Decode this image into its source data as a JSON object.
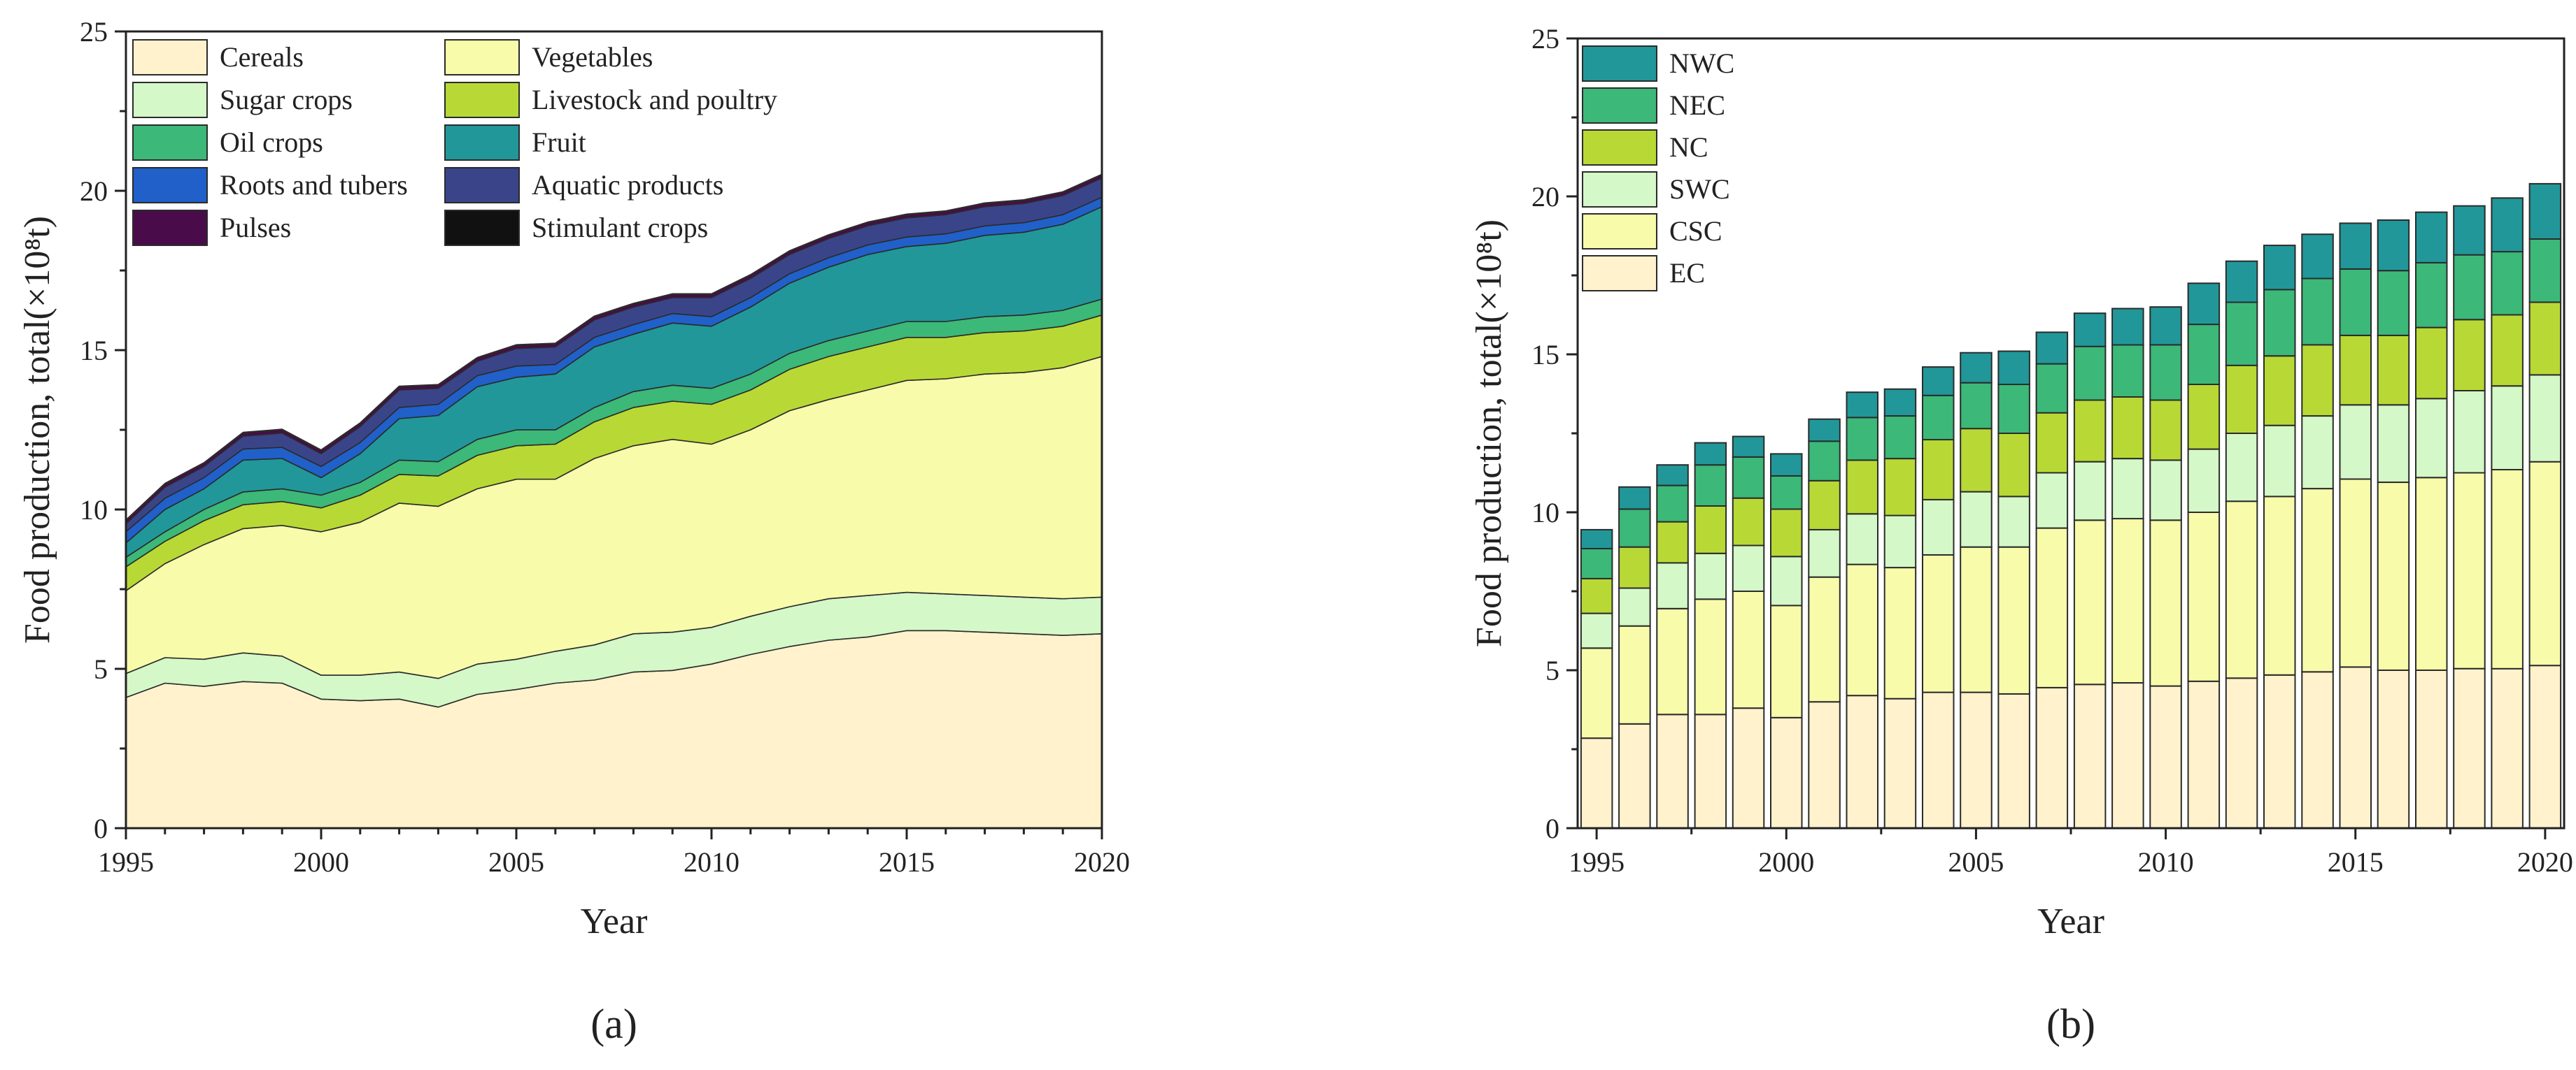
{
  "chart_data": [
    {
      "type": "area",
      "stacked": true,
      "panel_label": "(a)",
      "xlabel": "Year",
      "ylabel": "Food production, total(×10⁸t)",
      "xlim": [
        1995,
        2020
      ],
      "ylim": [
        0,
        25
      ],
      "xticks": [
        "1995",
        "2000",
        "2005",
        "2010",
        "2015",
        "2020"
      ],
      "yticks": [
        "0",
        "5",
        "10",
        "15",
        "20",
        "25"
      ],
      "x": [
        1995,
        1996,
        1997,
        1998,
        1999,
        2000,
        2001,
        2002,
        2003,
        2004,
        2005,
        2006,
        2007,
        2008,
        2009,
        2010,
        2011,
        2012,
        2013,
        2014,
        2015,
        2016,
        2017,
        2018,
        2019,
        2020
      ],
      "legend": {
        "placement": "top-left",
        "columns": 2,
        "entries": [
          "Cereals",
          "Vegetables",
          "Sugar crops",
          "Livestock and poultry",
          "Oil crops",
          "Fruit",
          "Roots and tubers",
          "Aquatic products",
          "Pulses",
          "Stimulant crops"
        ]
      },
      "series": [
        {
          "name": "Cereals",
          "color": "#fff2cc",
          "values": [
            4.1,
            4.55,
            4.45,
            4.6,
            4.55,
            4.05,
            4.0,
            4.05,
            3.8,
            4.2,
            4.35,
            4.55,
            4.65,
            4.9,
            4.95,
            5.15,
            5.45,
            5.7,
            5.9,
            6.0,
            6.2,
            6.2,
            6.15,
            6.1,
            6.05,
            6.1
          ]
        },
        {
          "name": "Sugar crops",
          "color": "#d4f8c8",
          "values": [
            0.75,
            0.8,
            0.85,
            0.9,
            0.85,
            0.75,
            0.8,
            0.85,
            0.9,
            0.95,
            0.95,
            1.0,
            1.1,
            1.2,
            1.2,
            1.15,
            1.2,
            1.25,
            1.3,
            1.3,
            1.2,
            1.15,
            1.15,
            1.15,
            1.15,
            1.15
          ]
        },
        {
          "name": "Vegetables",
          "color": "#f8fbaa",
          "values": [
            2.6,
            2.95,
            3.6,
            3.9,
            4.1,
            4.5,
            4.8,
            5.3,
            5.4,
            5.5,
            5.65,
            5.4,
            5.85,
            5.9,
            6.05,
            5.75,
            5.85,
            6.15,
            6.25,
            6.45,
            6.65,
            6.75,
            6.95,
            7.05,
            7.25,
            7.55
          ]
        },
        {
          "name": "Livestock and poultry",
          "color": "#b8d935",
          "values": [
            0.75,
            0.7,
            0.75,
            0.75,
            0.75,
            0.75,
            0.85,
            0.9,
            0.95,
            1.05,
            1.05,
            1.1,
            1.15,
            1.2,
            1.2,
            1.25,
            1.25,
            1.3,
            1.35,
            1.35,
            1.35,
            1.3,
            1.3,
            1.3,
            1.3,
            1.3
          ]
        },
        {
          "name": "Oil crops",
          "color": "#3cb878",
          "values": [
            0.3,
            0.3,
            0.35,
            0.4,
            0.4,
            0.4,
            0.4,
            0.45,
            0.45,
            0.5,
            0.5,
            0.45,
            0.45,
            0.5,
            0.5,
            0.5,
            0.5,
            0.5,
            0.5,
            0.5,
            0.5,
            0.5,
            0.5,
            0.5,
            0.5,
            0.5
          ]
        },
        {
          "name": "Fruit",
          "color": "#21979a",
          "values": [
            0.45,
            0.7,
            0.65,
            1.0,
            0.95,
            0.55,
            0.9,
            1.3,
            1.45,
            1.65,
            1.65,
            1.75,
            1.9,
            1.8,
            1.95,
            1.95,
            2.1,
            2.2,
            2.3,
            2.4,
            2.35,
            2.45,
            2.55,
            2.6,
            2.7,
            2.9
          ]
        },
        {
          "name": "Roots and tubers",
          "color": "#2060c8",
          "values": [
            0.35,
            0.35,
            0.35,
            0.35,
            0.35,
            0.35,
            0.35,
            0.35,
            0.35,
            0.35,
            0.35,
            0.3,
            0.3,
            0.3,
            0.3,
            0.3,
            0.3,
            0.3,
            0.3,
            0.3,
            0.3,
            0.3,
            0.3,
            0.3,
            0.3,
            0.3
          ]
        },
        {
          "name": "Aquatic products",
          "color": "#3a4589",
          "values": [
            0.25,
            0.35,
            0.35,
            0.4,
            0.45,
            0.4,
            0.5,
            0.55,
            0.5,
            0.45,
            0.55,
            0.55,
            0.55,
            0.55,
            0.5,
            0.6,
            0.6,
            0.6,
            0.6,
            0.6,
            0.6,
            0.6,
            0.6,
            0.6,
            0.6,
            0.6
          ]
        },
        {
          "name": "Pulses",
          "color": "#4a0b4a",
          "values": [
            0.1,
            0.1,
            0.1,
            0.1,
            0.1,
            0.1,
            0.1,
            0.1,
            0.1,
            0.1,
            0.1,
            0.1,
            0.1,
            0.1,
            0.1,
            0.1,
            0.1,
            0.1,
            0.1,
            0.1,
            0.1,
            0.1,
            0.1,
            0.1,
            0.1,
            0.1
          ]
        },
        {
          "name": "Stimulant crops",
          "color": "#111111",
          "values": [
            0.02,
            0.02,
            0.02,
            0.02,
            0.02,
            0.02,
            0.02,
            0.02,
            0.02,
            0.02,
            0.02,
            0.02,
            0.02,
            0.02,
            0.02,
            0.02,
            0.02,
            0.02,
            0.02,
            0.02,
            0.02,
            0.02,
            0.02,
            0.02,
            0.02,
            0.02
          ]
        }
      ]
    },
    {
      "type": "bar",
      "stacked": true,
      "panel_label": "(b)",
      "xlabel": "Year",
      "ylabel": "Food production, total(×10⁸t)",
      "xlim": [
        1994.5,
        2020.5
      ],
      "ylim": [
        0,
        25
      ],
      "xticks": [
        "1995",
        "2000",
        "2005",
        "2010",
        "2015",
        "2020"
      ],
      "yticks": [
        "0",
        "5",
        "10",
        "15",
        "20",
        "25"
      ],
      "categories": [
        1995,
        1996,
        1997,
        1998,
        1999,
        2000,
        2001,
        2002,
        2003,
        2004,
        2005,
        2006,
        2007,
        2008,
        2009,
        2010,
        2011,
        2012,
        2013,
        2014,
        2015,
        2016,
        2017,
        2018,
        2019,
        2020
      ],
      "legend": {
        "placement": "top-left",
        "columns": 1,
        "entries": [
          "NWC",
          "NEC",
          "NC",
          "SWC",
          "CSC",
          "EC"
        ]
      },
      "series": [
        {
          "name": "EC",
          "color": "#fff2cc",
          "values": [
            2.85,
            3.3,
            3.6,
            3.6,
            3.8,
            3.5,
            4.0,
            4.2,
            4.1,
            4.3,
            4.3,
            4.25,
            4.45,
            4.55,
            4.6,
            4.5,
            4.65,
            4.75,
            4.85,
            4.95,
            5.1,
            5.0,
            5.0,
            5.05,
            5.05,
            5.15
          ]
        },
        {
          "name": "CSC",
          "color": "#f8fbaa",
          "values": [
            2.85,
            3.1,
            3.35,
            3.65,
            3.7,
            3.55,
            3.95,
            4.15,
            4.15,
            4.35,
            4.6,
            4.65,
            5.05,
            5.2,
            5.2,
            5.25,
            5.35,
            5.6,
            5.65,
            5.8,
            5.95,
            5.95,
            6.1,
            6.2,
            6.3,
            6.45
          ]
        },
        {
          "name": "SWC",
          "color": "#d4f8c8",
          "values": [
            1.1,
            1.2,
            1.45,
            1.45,
            1.45,
            1.55,
            1.5,
            1.6,
            1.65,
            1.75,
            1.75,
            1.6,
            1.75,
            1.85,
            1.9,
            1.9,
            2.0,
            2.15,
            2.25,
            2.3,
            2.35,
            2.45,
            2.5,
            2.6,
            2.65,
            2.75
          ]
        },
        {
          "name": "NC",
          "color": "#b8d935",
          "values": [
            1.1,
            1.3,
            1.3,
            1.5,
            1.5,
            1.5,
            1.55,
            1.7,
            1.8,
            1.9,
            2.0,
            2.0,
            1.9,
            1.95,
            1.95,
            1.9,
            2.05,
            2.15,
            2.2,
            2.25,
            2.2,
            2.2,
            2.25,
            2.25,
            2.25,
            2.3
          ]
        },
        {
          "name": "NEC",
          "color": "#3cb878",
          "values": [
            0.95,
            1.2,
            1.15,
            1.3,
            1.3,
            1.05,
            1.25,
            1.35,
            1.35,
            1.4,
            1.45,
            1.55,
            1.55,
            1.7,
            1.65,
            1.75,
            1.9,
            2.0,
            2.1,
            2.1,
            2.1,
            2.05,
            2.05,
            2.05,
            2.0,
            2.0
          ]
        },
        {
          "name": "NWC",
          "color": "#21979a",
          "values": [
            0.6,
            0.7,
            0.65,
            0.7,
            0.65,
            0.7,
            0.7,
            0.8,
            0.85,
            0.9,
            0.95,
            1.05,
            1.0,
            1.05,
            1.15,
            1.2,
            1.3,
            1.3,
            1.4,
            1.4,
            1.45,
            1.6,
            1.6,
            1.55,
            1.7,
            1.75
          ]
        }
      ]
    }
  ]
}
